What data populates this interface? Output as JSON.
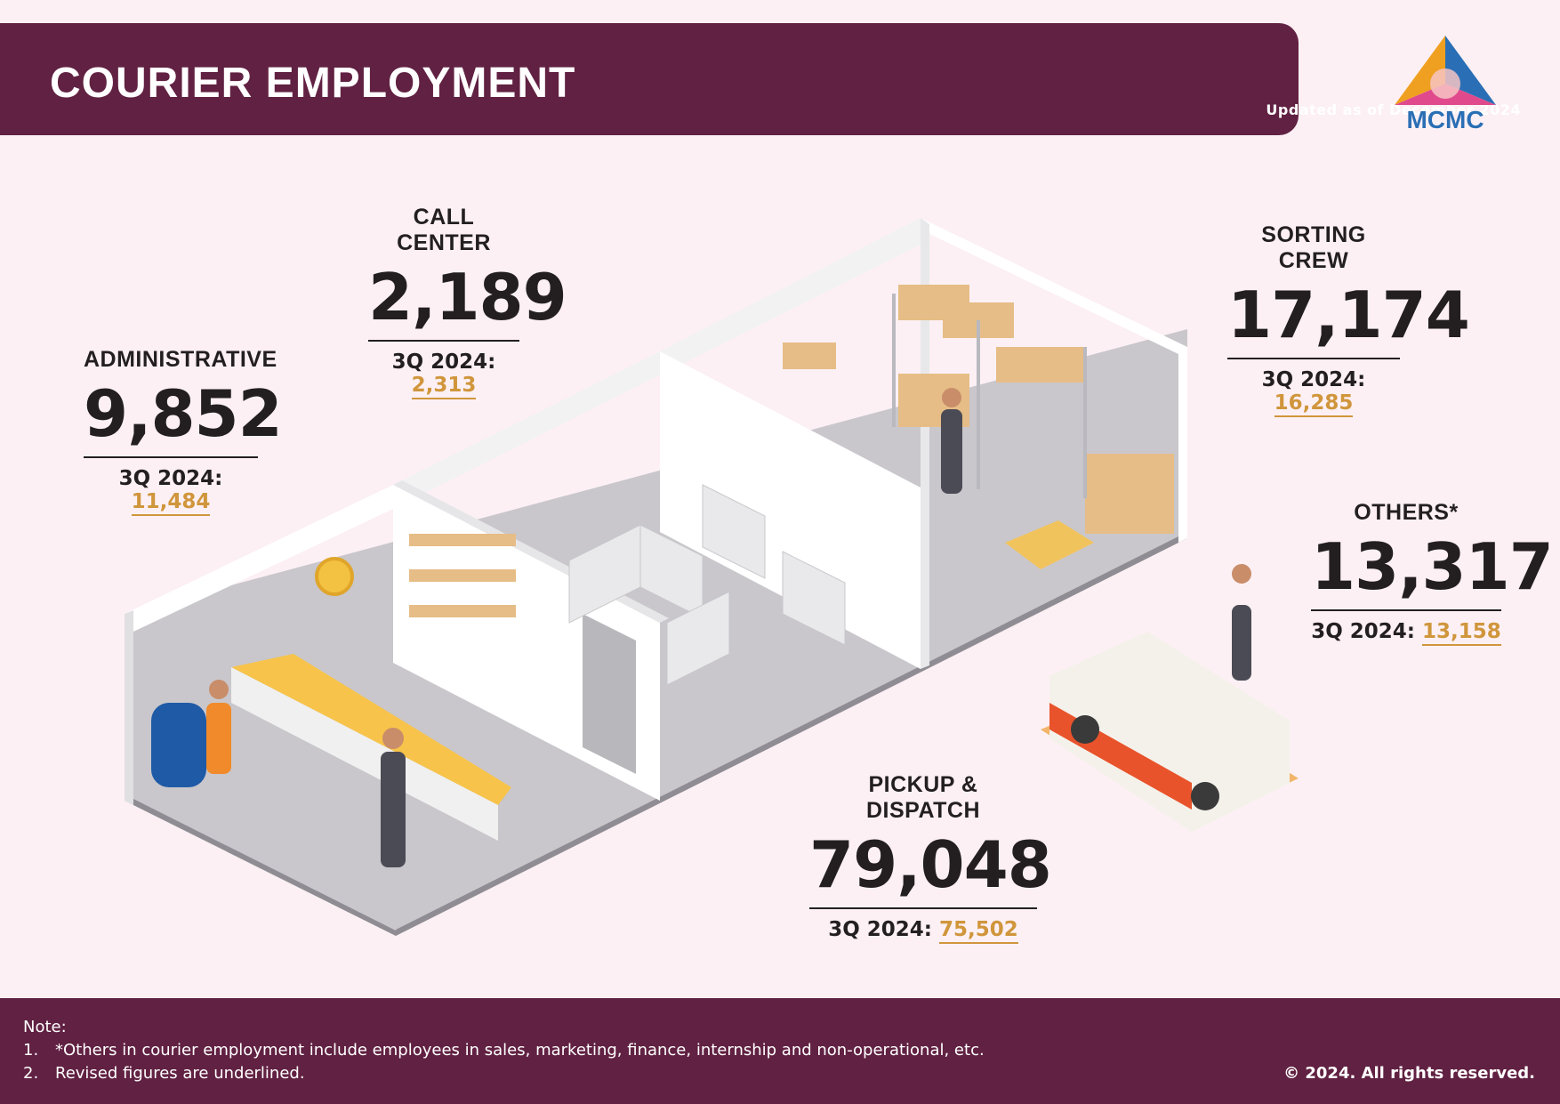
{
  "header": {
    "title": "COURIER EMPLOYMENT",
    "updated": "Updated as of December 2024"
  },
  "logo": {
    "text": "MCMC"
  },
  "stats": {
    "administrative": {
      "label": "ADMINISTRATIVE",
      "value": "9,852",
      "prev_label": "3Q 2024:",
      "prev_value": "11,484"
    },
    "call_center": {
      "label": "CALL CENTER",
      "value": "2,189",
      "prev_label": "3Q 2024:",
      "prev_value": "2,313"
    },
    "sorting_crew": {
      "label": "SORTING CREW",
      "value": "17,174",
      "prev_label": "3Q 2024:",
      "prev_value": "16,285"
    },
    "others": {
      "label": "OTHERS*",
      "value": "13,317",
      "prev_label": "3Q 2024:",
      "prev_value": "13,158"
    },
    "pickup_dispatch": {
      "label": "PICKUP & DISPATCH",
      "value": "79,048",
      "prev_label": "3Q 2024:",
      "prev_value": "75,502"
    }
  },
  "footer": {
    "note_title": "Note:",
    "notes": [
      {
        "num": "1.",
        "text": "*Others in courier employment include employees in sales, marketing, finance, internship and non-operational, etc."
      },
      {
        "num": "2.",
        "text": "Revised figures are underlined."
      }
    ],
    "copyright": "© 2024. All rights reserved."
  },
  "colors": {
    "background": "#fcf0f4",
    "header": "#612142",
    "accent": "#d0963c",
    "text": "#231f20"
  }
}
